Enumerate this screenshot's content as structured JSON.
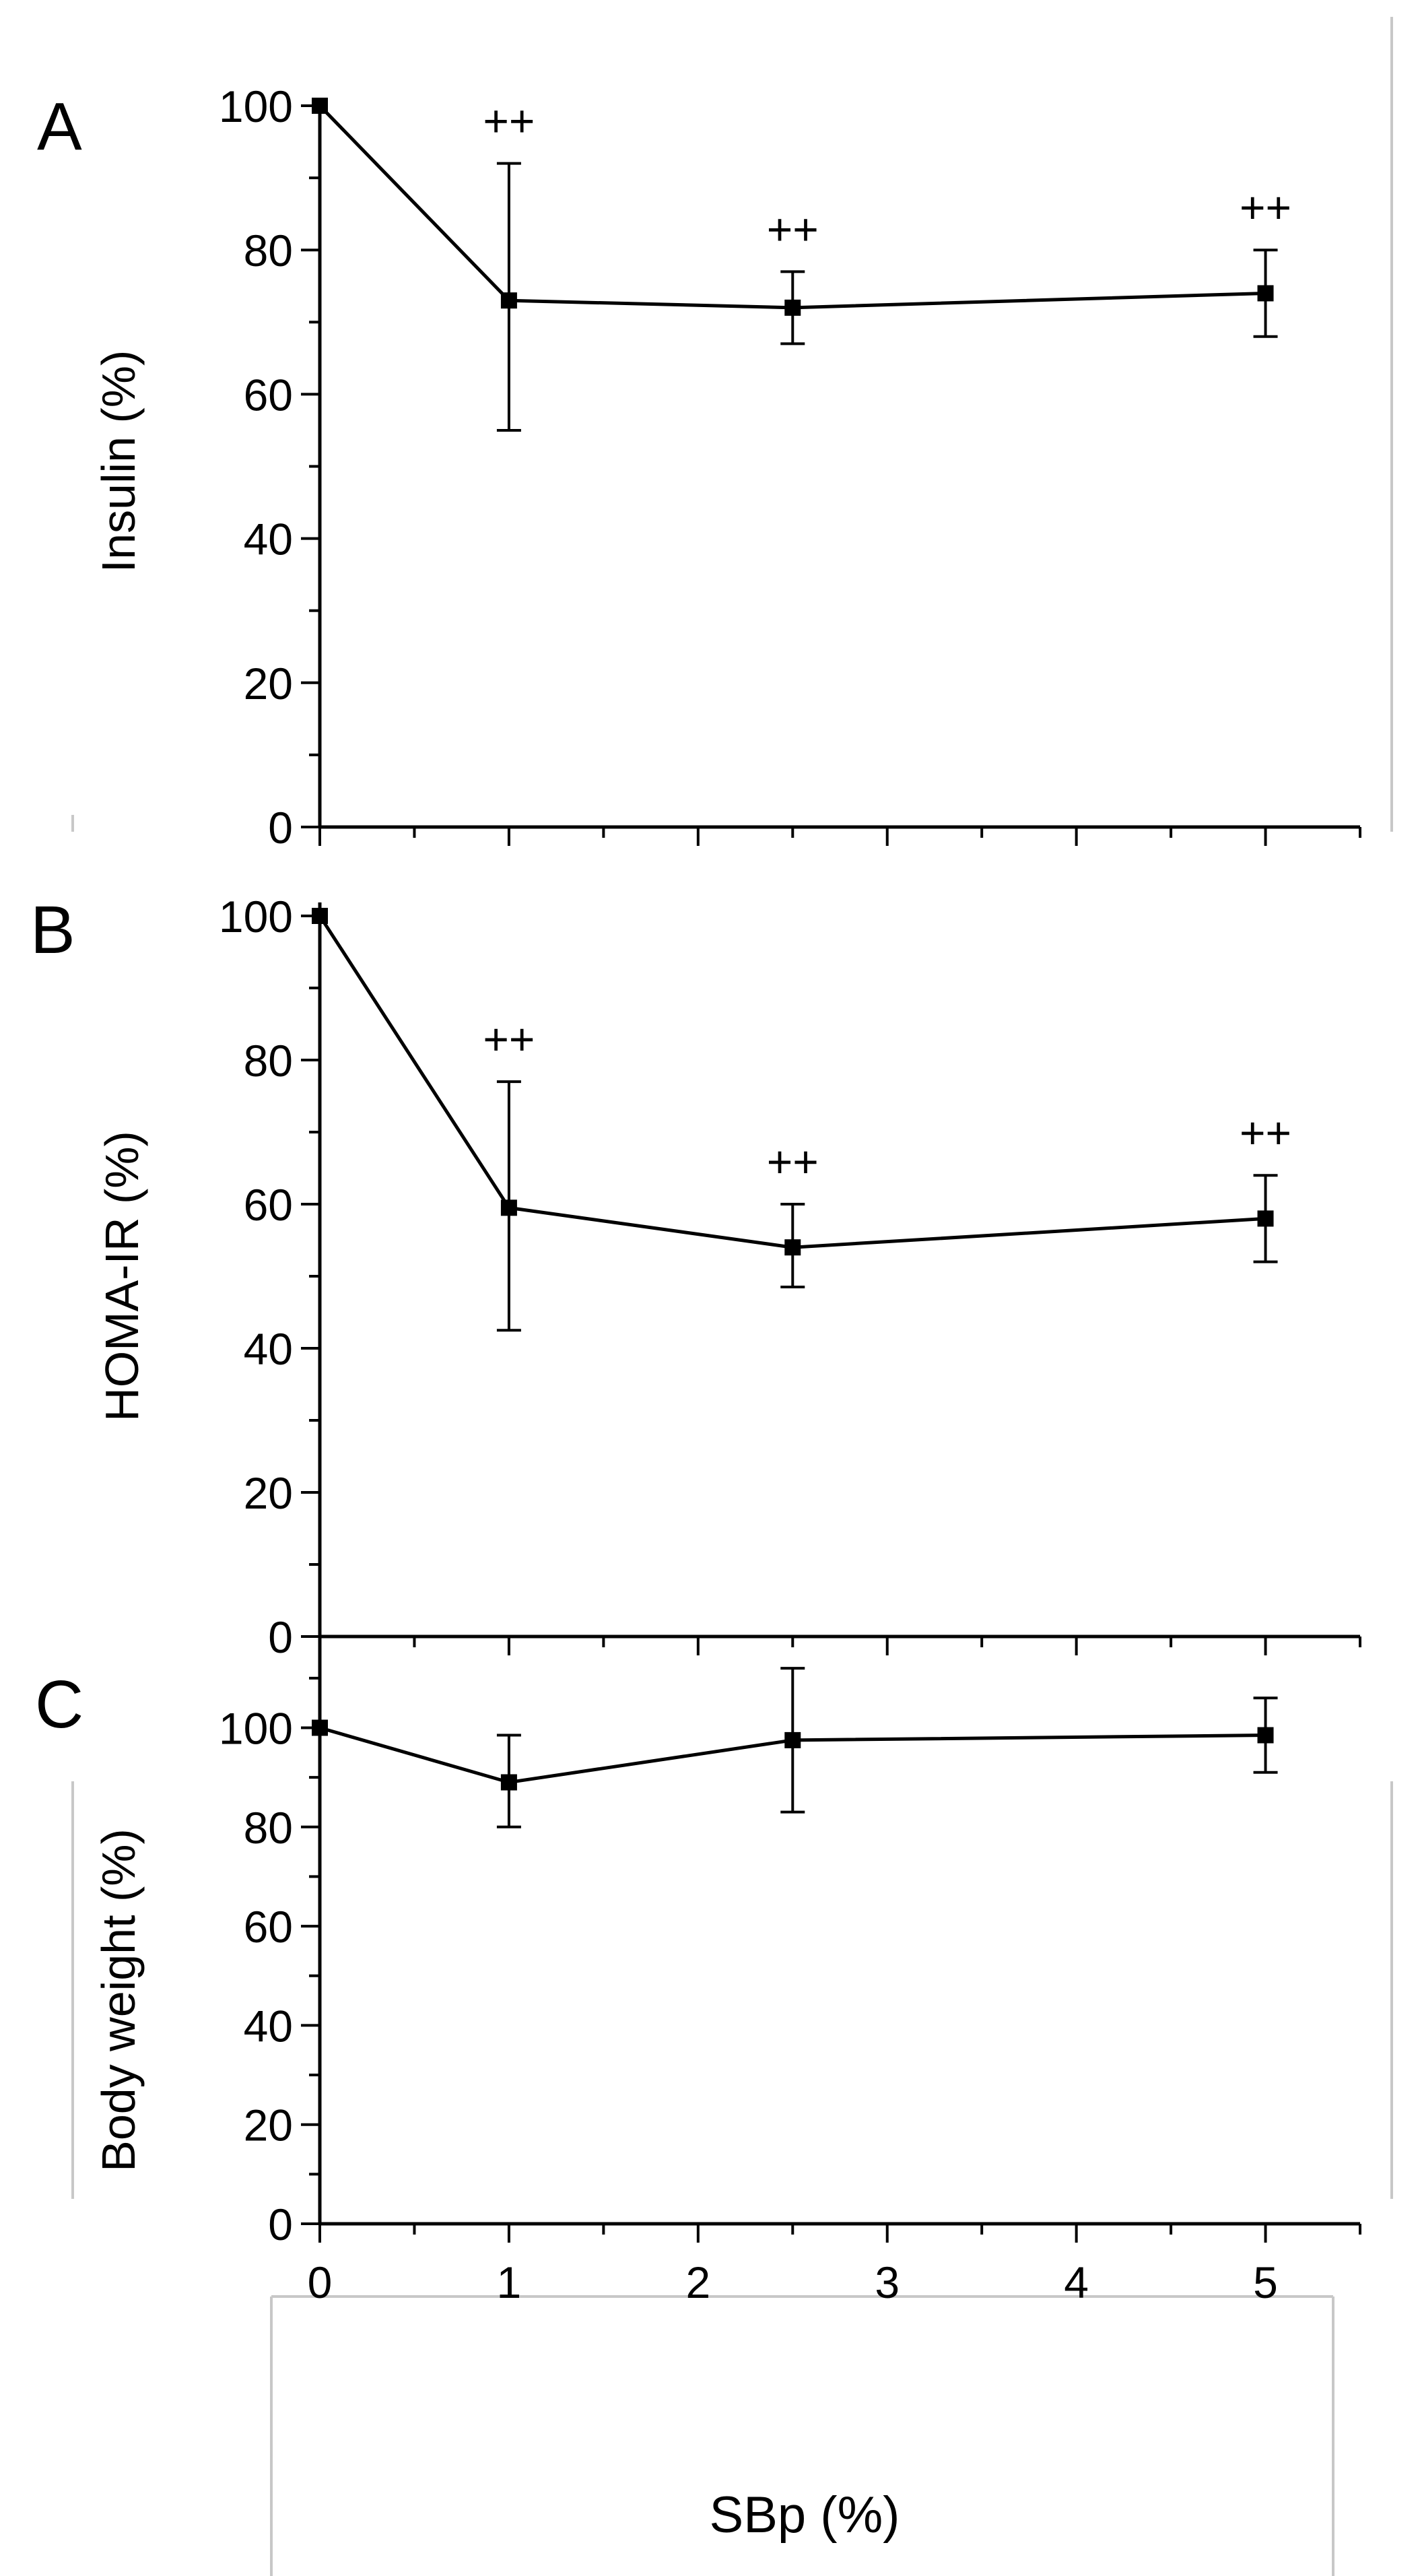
{
  "figure": {
    "xlabel": "SBp (%)"
  },
  "chart_data": [
    {
      "type": "line",
      "panel_label": "A",
      "title": "",
      "xlabel": "SBp (%)",
      "ylabel": "Insulin (%)",
      "xlim": [
        0,
        5.5
      ],
      "ylim": [
        0,
        100
      ],
      "x_ticks": [
        0,
        1,
        2,
        3,
        4,
        5
      ],
      "y_ticks": [
        0,
        20,
        40,
        60,
        80,
        100
      ],
      "series": [
        {
          "name": "Insulin",
          "x": [
            0,
            1,
            2.5,
            5
          ],
          "values": [
            100,
            73,
            72,
            74
          ],
          "err_low": [
            100,
            55,
            67,
            68
          ],
          "err_high": [
            100,
            92,
            77,
            80
          ],
          "annotations": [
            "",
            "++",
            "++",
            "++"
          ]
        }
      ]
    },
    {
      "type": "line",
      "panel_label": "B",
      "title": "",
      "xlabel": "SBp (%)",
      "ylabel": "HOMA-IR (%)",
      "xlim": [
        0,
        5.5
      ],
      "ylim": [
        0,
        100
      ],
      "x_ticks": [
        0,
        1,
        2,
        3,
        4,
        5
      ],
      "y_ticks": [
        0,
        20,
        40,
        60,
        80,
        100
      ],
      "series": [
        {
          "name": "HOMA-IR",
          "x": [
            0,
            1,
            2.5,
            5
          ],
          "values": [
            100,
            59.5,
            54,
            58
          ],
          "err_low": [
            100,
            42.5,
            48.5,
            52
          ],
          "err_high": [
            100,
            77,
            60,
            64
          ],
          "annotations": [
            "",
            "++",
            "++",
            "++"
          ]
        }
      ]
    },
    {
      "type": "line",
      "panel_label": "C",
      "title": "",
      "xlabel": "SBp (%)",
      "ylabel": "Body weight (%)",
      "xlim": [
        0,
        5.5
      ],
      "ylim": [
        0,
        115
      ],
      "x_ticks": [
        0,
        1,
        2,
        3,
        4,
        5
      ],
      "y_ticks": [
        0,
        20,
        40,
        60,
        80,
        100
      ],
      "series": [
        {
          "name": "Body weight",
          "x": [
            0,
            1,
            2.5,
            5
          ],
          "values": [
            100,
            89,
            97.5,
            98.5
          ],
          "err_low": [
            100,
            80,
            83,
            91
          ],
          "err_high": [
            100,
            98.5,
            112,
            106
          ],
          "annotations": [
            "",
            "",
            "",
            ""
          ]
        }
      ]
    }
  ]
}
